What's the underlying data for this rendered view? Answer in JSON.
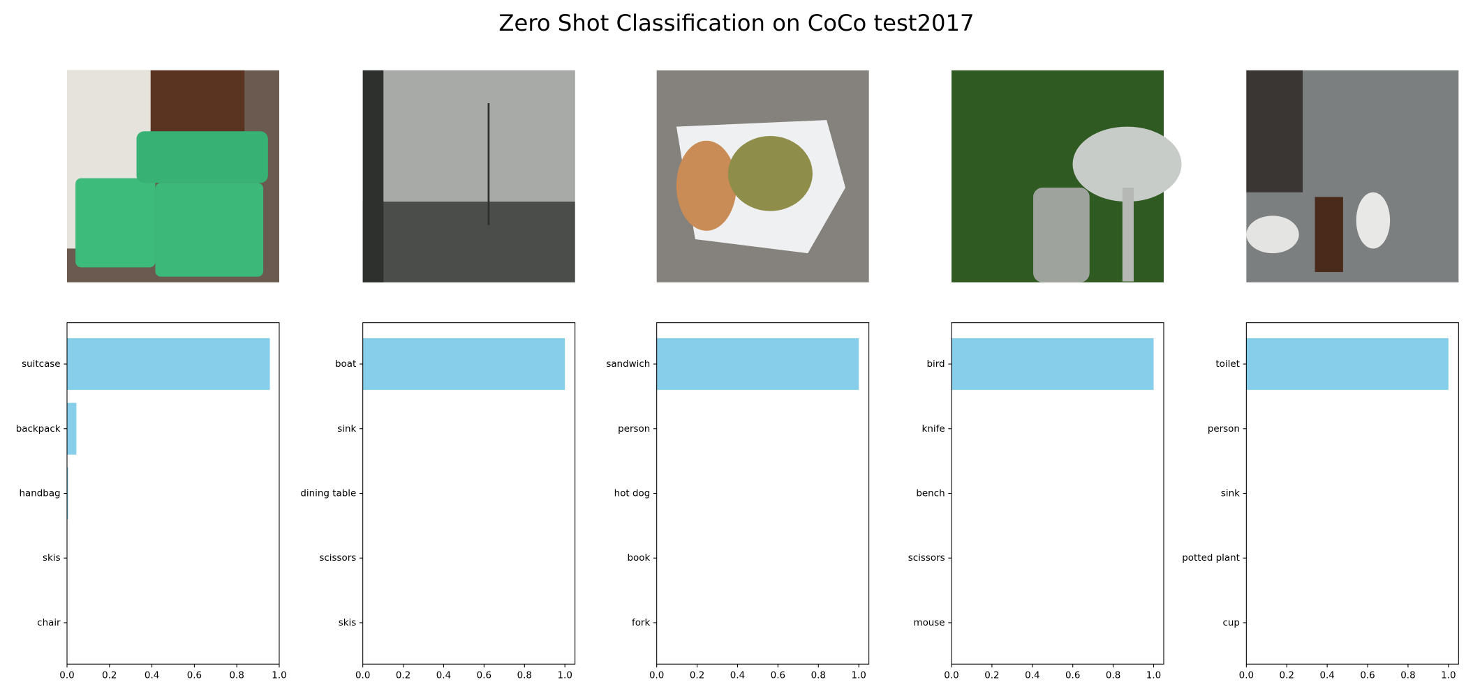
{
  "title": "Zero Shot Classification on CoCo test2017",
  "chart_data": [
    {
      "type": "bar",
      "orientation": "horizontal",
      "color": "#87ceeb",
      "categories": [
        "suitcase",
        "backpack",
        "handbag",
        "skis",
        "chair"
      ],
      "values": [
        0.956,
        0.044,
        0.005,
        0,
        0
      ],
      "xlim": [
        0,
        1.0
      ],
      "xticks": [
        {
          "value": 0,
          "label": "0.0"
        },
        {
          "value": 0.2,
          "label": "0.2"
        },
        {
          "value": 0.4,
          "label": "0.4"
        },
        {
          "value": 0.6,
          "label": "0.6"
        },
        {
          "value": 0.8,
          "label": "0.8"
        },
        {
          "value": 1,
          "label": "1.0"
        }
      ]
    },
    {
      "type": "bar",
      "orientation": "horizontal",
      "color": "#87ceeb",
      "categories": [
        "boat",
        "sink",
        "dining table",
        "scissors",
        "skis"
      ],
      "values": [
        1,
        0,
        0,
        0,
        0
      ],
      "xlim": [
        0,
        1.05
      ],
      "xticks": [
        {
          "value": 0,
          "label": "0.0"
        },
        {
          "value": 0.2,
          "label": "0.2"
        },
        {
          "value": 0.4,
          "label": "0.4"
        },
        {
          "value": 0.6,
          "label": "0.6"
        },
        {
          "value": 0.8,
          "label": "0.8"
        },
        {
          "value": 1,
          "label": "1.0"
        }
      ]
    },
    {
      "type": "bar",
      "orientation": "horizontal",
      "color": "#87ceeb",
      "categories": [
        "sandwich",
        "person",
        "hot dog",
        "book",
        "fork"
      ],
      "values": [
        1,
        0,
        0,
        0,
        0
      ],
      "xlim": [
        0,
        1.05
      ],
      "xticks": [
        {
          "value": 0,
          "label": "0.0"
        },
        {
          "value": 0.2,
          "label": "0.2"
        },
        {
          "value": 0.4,
          "label": "0.4"
        },
        {
          "value": 0.6,
          "label": "0.6"
        },
        {
          "value": 0.8,
          "label": "0.8"
        },
        {
          "value": 1,
          "label": "1.0"
        }
      ]
    },
    {
      "type": "bar",
      "orientation": "horizontal",
      "color": "#87ceeb",
      "categories": [
        "bird",
        "knife",
        "bench",
        "scissors",
        "mouse"
      ],
      "values": [
        1,
        0,
        0,
        0,
        0
      ],
      "xlim": [
        0,
        1.05
      ],
      "xticks": [
        {
          "value": 0,
          "label": "0.0"
        },
        {
          "value": 0.2,
          "label": "0.2"
        },
        {
          "value": 0.4,
          "label": "0.4"
        },
        {
          "value": 0.6,
          "label": "0.6"
        },
        {
          "value": 0.8,
          "label": "0.8"
        },
        {
          "value": 1,
          "label": "1.0"
        }
      ]
    },
    {
      "type": "bar",
      "orientation": "horizontal",
      "color": "#87ceeb",
      "categories": [
        "toilet",
        "person",
        "sink",
        "potted plant",
        "cup"
      ],
      "values": [
        1,
        0,
        0,
        0,
        0
      ],
      "xlim": [
        0,
        1.05
      ],
      "xticks": [
        {
          "value": 0,
          "label": "0.0"
        },
        {
          "value": 0.2,
          "label": "0.2"
        },
        {
          "value": 0.4,
          "label": "0.4"
        },
        {
          "value": 0.6,
          "label": "0.6"
        },
        {
          "value": 0.8,
          "label": "0.8"
        },
        {
          "value": 1,
          "label": "1.0"
        }
      ]
    }
  ]
}
